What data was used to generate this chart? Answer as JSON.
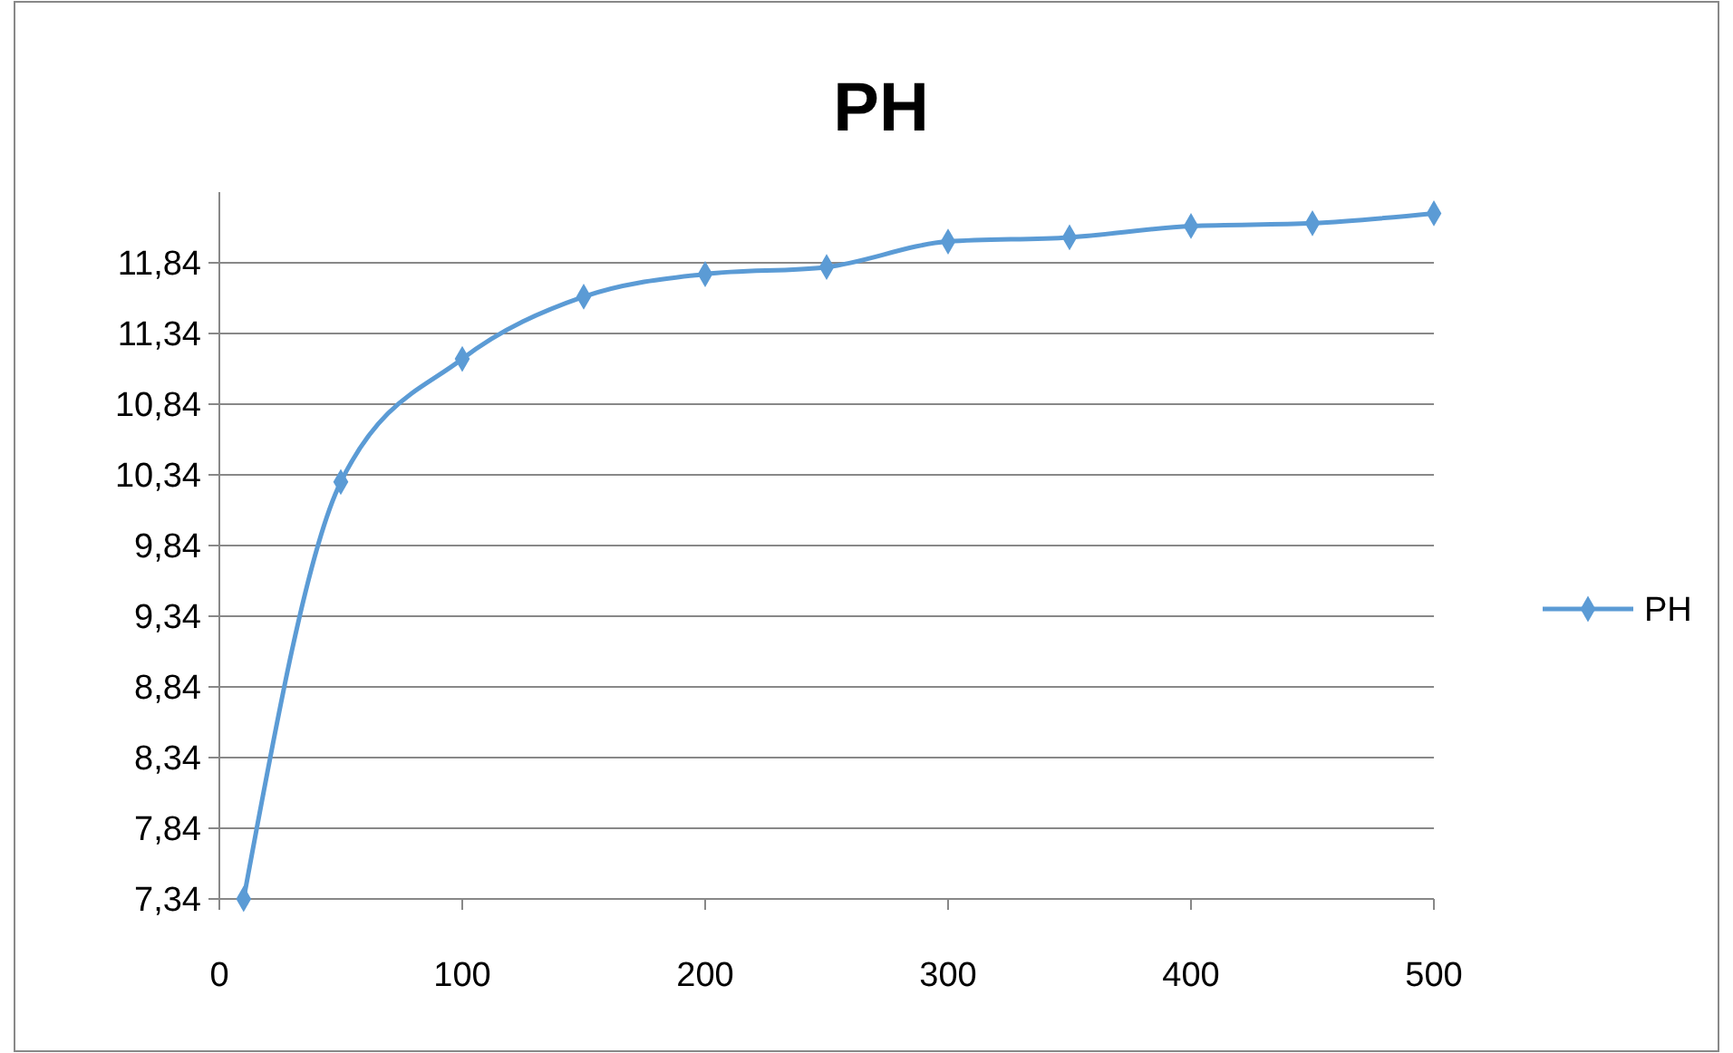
{
  "chart_data": {
    "type": "line",
    "title": "PH",
    "x": [
      10,
      50,
      100,
      150,
      200,
      250,
      300,
      350,
      400,
      450,
      500
    ],
    "series": [
      {
        "name": "PH",
        "color": "#5b9bd5",
        "values": [
          7.34,
          10.29,
          11.16,
          11.6,
          11.76,
          11.81,
          11.99,
          12.02,
          12.1,
          12.12,
          12.19
        ]
      }
    ],
    "xlim": [
      0,
      500
    ],
    "xticks": [
      0,
      100,
      200,
      300,
      400,
      500
    ],
    "ylim": [
      7.34,
      12.34
    ],
    "yticks": [
      {
        "value": 7.34,
        "label": "7,34"
      },
      {
        "value": 7.84,
        "label": "7,84"
      },
      {
        "value": 8.34,
        "label": "8,34"
      },
      {
        "value": 8.84,
        "label": "8,84"
      },
      {
        "value": 9.34,
        "label": "9,34"
      },
      {
        "value": 9.84,
        "label": "9,84"
      },
      {
        "value": 10.34,
        "label": "10,34"
      },
      {
        "value": 10.84,
        "label": "10,84"
      },
      {
        "value": 11.34,
        "label": "11,34"
      },
      {
        "value": 11.84,
        "label": "11,84"
      }
    ],
    "grid": "y",
    "legend": "right",
    "marker": "diamond",
    "line_style": "solid"
  }
}
